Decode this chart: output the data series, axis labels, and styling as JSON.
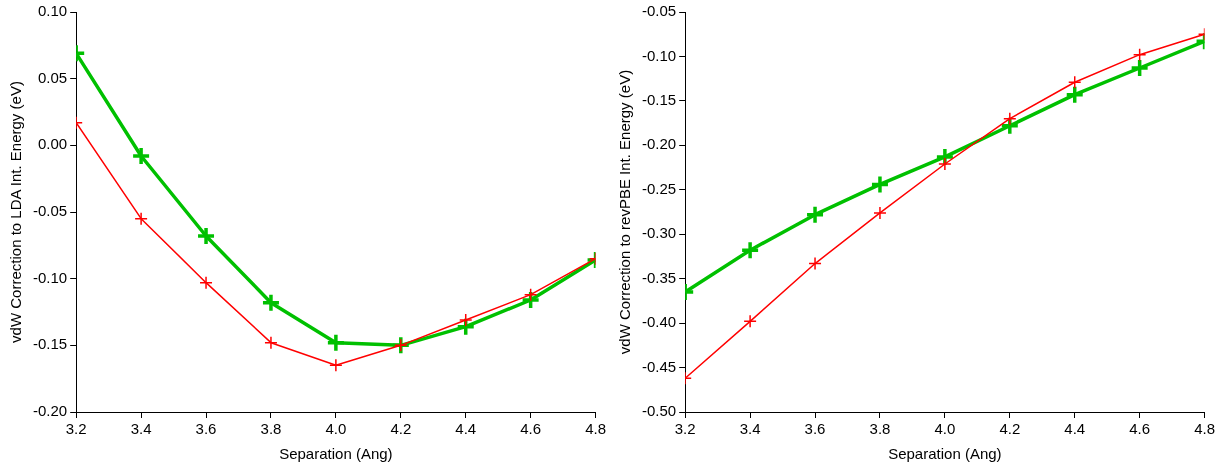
{
  "chart_data": [
    {
      "type": "line",
      "xlabel": "Separation (Ang)",
      "ylabel": "vdW Correction to LDA Int. Energy (eV)",
      "x": [
        3.2,
        3.4,
        3.6,
        3.8,
        4.0,
        4.2,
        4.4,
        4.6,
        4.8
      ],
      "series": [
        {
          "color": "#ff0000",
          "values": [
            0.017,
            -0.055,
            -0.103,
            -0.148,
            -0.165,
            -0.15,
            -0.131,
            -0.112,
            -0.085
          ]
        },
        {
          "color": "#00c000",
          "values": [
            0.069,
            -0.008,
            -0.068,
            -0.118,
            -0.148,
            -0.15,
            -0.136,
            -0.116,
            -0.086
          ]
        }
      ],
      "xlim": [
        3.2,
        4.8
      ],
      "xticks": [
        3.2,
        3.4,
        3.6,
        3.8,
        {
          "value": 4,
          "label": "4.0"
        },
        4.2,
        4.4,
        4.6,
        4.8
      ],
      "ylim": [
        -0.2,
        0.1
      ],
      "yticks": [
        {
          "value": -0.2,
          "label": "-0.20"
        },
        {
          "value": -0.15,
          "label": "-0.15"
        },
        {
          "value": -0.1,
          "label": "-0.10"
        },
        {
          "value": -0.05,
          "label": "-0.05"
        },
        {
          "value": 0,
          "label": "0.00"
        },
        {
          "value": 0.05,
          "label": "0.05"
        },
        {
          "value": 0.1,
          "label": "0.10"
        }
      ],
      "marker": "cross",
      "line_style": "solid",
      "grid": false,
      "legend": false
    },
    {
      "type": "line",
      "xlabel": "Separation (Ang)",
      "ylabel": "vdW Correction to revPBE Int. Energy (eV)",
      "x": [
        3.2,
        3.4,
        3.6,
        3.8,
        4.0,
        4.2,
        4.4,
        4.6,
        4.8
      ],
      "series": [
        {
          "color": "#ff0000",
          "values": [
            -0.462,
            -0.398,
            -0.333,
            -0.276,
            -0.221,
            -0.17,
            -0.129,
            -0.098,
            -0.075
          ]
        },
        {
          "color": "#00c000",
          "values": [
            -0.365,
            -0.318,
            -0.278,
            -0.244,
            -0.213,
            -0.178,
            -0.143,
            -0.113,
            -0.083
          ]
        }
      ],
      "xlim": [
        3.2,
        4.8
      ],
      "xticks": [
        3.2,
        3.4,
        3.6,
        3.8,
        {
          "value": 4,
          "label": "4.0"
        },
        4.2,
        4.4,
        4.6,
        4.8
      ],
      "ylim": [
        -0.5,
        -0.05
      ],
      "yticks": [
        {
          "value": -0.5,
          "label": "-0.50"
        },
        {
          "value": -0.45,
          "label": "-0.45"
        },
        {
          "value": -0.4,
          "label": "-0.40"
        },
        {
          "value": -0.35,
          "label": "-0.35"
        },
        {
          "value": -0.3,
          "label": "-0.30"
        },
        {
          "value": -0.25,
          "label": "-0.25"
        },
        {
          "value": -0.2,
          "label": "-0.20"
        },
        {
          "value": -0.15,
          "label": "-0.15"
        },
        {
          "value": -0.1,
          "label": "-0.10"
        },
        {
          "value": -0.05,
          "label": "-0.05"
        }
      ],
      "marker": "cross",
      "line_style": "solid",
      "grid": false,
      "legend": false
    }
  ]
}
